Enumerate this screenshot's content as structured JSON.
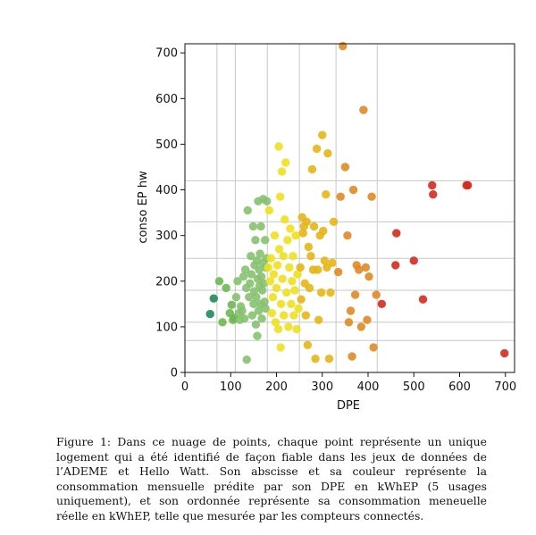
{
  "caption": "Figure 1: Dans ce nuage de points, chaque point représente un unique logement qui a été identifié de façon fiable dans les jeux de données de l’ADEME et Hello Watt. Son abscisse et sa couleur représente la consommation mensuelle prédite par son DPE en kWhEP (5 usages uniquement), et son ordonnée représente sa consommation meneuelle réelle en kWhEP, telle que mesurée par les compteurs connectés.",
  "chart_data": {
    "type": "scatter",
    "xlabel": "DPE",
    "ylabel": "conso EP hw",
    "xlim": [
      0,
      720
    ],
    "ylim": [
      0,
      720
    ],
    "xticks": [
      "0",
      "100",
      "200",
      "300",
      "400",
      "500",
      "600",
      "700"
    ],
    "yticks": [
      "0",
      "100",
      "200",
      "300",
      "400",
      "500",
      "600",
      "700"
    ],
    "vlines": [
      70,
      110,
      180,
      250,
      330,
      420
    ],
    "hlines": [
      70,
      110,
      180,
      250,
      330,
      420
    ],
    "class_colors": {
      "A": "#1f8a5c",
      "B": "#6cb84f",
      "C": "#86c170",
      "D": "#f0e020",
      "E": "#e6b515",
      "F": "#e08a25",
      "G": "#d42a1f"
    },
    "points": [
      [
        55,
        128
      ],
      [
        63,
        162
      ],
      [
        75,
        200
      ],
      [
        82,
        110
      ],
      [
        90,
        185
      ],
      [
        98,
        130
      ],
      [
        102,
        148
      ],
      [
        105,
        115
      ],
      [
        108,
        120
      ],
      [
        112,
        165
      ],
      [
        115,
        200
      ],
      [
        118,
        130
      ],
      [
        120,
        115
      ],
      [
        122,
        145
      ],
      [
        125,
        135
      ],
      [
        128,
        210
      ],
      [
        130,
        118
      ],
      [
        132,
        225
      ],
      [
        134,
        185
      ],
      [
        135,
        28
      ],
      [
        137,
        355
      ],
      [
        140,
        165
      ],
      [
        142,
        195
      ],
      [
        144,
        255
      ],
      [
        145,
        215
      ],
      [
        147,
        125
      ],
      [
        149,
        320
      ],
      [
        150,
        150
      ],
      [
        151,
        178
      ],
      [
        152,
        235
      ],
      [
        154,
        290
      ],
      [
        155,
        105
      ],
      [
        156,
        165
      ],
      [
        157,
        245
      ],
      [
        158,
        80
      ],
      [
        159,
        205
      ],
      [
        160,
        375
      ],
      [
        161,
        135
      ],
      [
        162,
        225
      ],
      [
        163,
        190
      ],
      [
        164,
        260
      ],
      [
        165,
        150
      ],
      [
        166,
        320
      ],
      [
        167,
        210
      ],
      [
        168,
        118
      ],
      [
        169,
        180
      ],
      [
        170,
        240
      ],
      [
        171,
        380
      ],
      [
        172,
        195
      ],
      [
        174,
        155
      ],
      [
        175,
        290
      ],
      [
        176,
        140
      ],
      [
        177,
        230
      ],
      [
        178,
        250
      ],
      [
        179,
        375
      ],
      [
        182,
        230
      ],
      [
        184,
        355
      ],
      [
        186,
        200
      ],
      [
        188,
        250
      ],
      [
        190,
        130
      ],
      [
        192,
        165
      ],
      [
        194,
        215
      ],
      [
        196,
        300
      ],
      [
        198,
        110
      ],
      [
        200,
        185
      ],
      [
        202,
        235
      ],
      [
        204,
        95
      ],
      [
        205,
        495
      ],
      [
        206,
        270
      ],
      [
        208,
        385
      ],
      [
        209,
        55
      ],
      [
        210,
        150
      ],
      [
        212,
        440
      ],
      [
        213,
        205
      ],
      [
        215,
        255
      ],
      [
        216,
        125
      ],
      [
        218,
        335
      ],
      [
        220,
        460
      ],
      [
        222,
        175
      ],
      [
        224,
        290
      ],
      [
        226,
        100
      ],
      [
        228,
        230
      ],
      [
        230,
        315
      ],
      [
        232,
        150
      ],
      [
        234,
        200
      ],
      [
        236,
        255
      ],
      [
        238,
        125
      ],
      [
        240,
        180
      ],
      [
        242,
        300
      ],
      [
        244,
        95
      ],
      [
        246,
        215
      ],
      [
        248,
        140
      ],
      [
        252,
        230
      ],
      [
        254,
        160
      ],
      [
        256,
        340
      ],
      [
        258,
        305
      ],
      [
        260,
        320
      ],
      [
        262,
        195
      ],
      [
        264,
        125
      ],
      [
        266,
        330
      ],
      [
        268,
        60
      ],
      [
        270,
        275
      ],
      [
        272,
        185
      ],
      [
        275,
        255
      ],
      [
        278,
        445
      ],
      [
        280,
        225
      ],
      [
        282,
        320
      ],
      [
        285,
        30
      ],
      [
        288,
        490
      ],
      [
        290,
        225
      ],
      [
        292,
        115
      ],
      [
        295,
        300
      ],
      [
        298,
        175
      ],
      [
        300,
        520
      ],
      [
        302,
        310
      ],
      [
        305,
        245
      ],
      [
        308,
        390
      ],
      [
        310,
        230
      ],
      [
        312,
        480
      ],
      [
        315,
        30
      ],
      [
        318,
        175
      ],
      [
        322,
        240
      ],
      [
        325,
        330
      ],
      [
        335,
        220
      ],
      [
        340,
        385
      ],
      [
        345,
        715
      ],
      [
        350,
        450
      ],
      [
        355,
        300
      ],
      [
        358,
        110
      ],
      [
        362,
        135
      ],
      [
        365,
        35
      ],
      [
        368,
        400
      ],
      [
        372,
        170
      ],
      [
        375,
        235
      ],
      [
        380,
        225
      ],
      [
        385,
        100
      ],
      [
        390,
        575
      ],
      [
        395,
        230
      ],
      [
        398,
        115
      ],
      [
        402,
        210
      ],
      [
        408,
        385
      ],
      [
        412,
        55
      ],
      [
        418,
        170
      ],
      [
        430,
        150
      ],
      [
        460,
        235
      ],
      [
        462,
        305
      ],
      [
        500,
        245
      ],
      [
        520,
        160
      ],
      [
        540,
        410
      ],
      [
        542,
        390
      ],
      [
        615,
        410
      ],
      [
        618,
        410
      ],
      [
        698,
        42
      ]
    ]
  }
}
